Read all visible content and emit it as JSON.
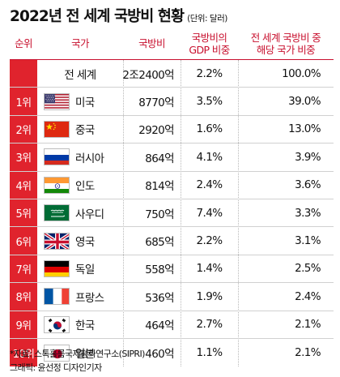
{
  "title": {
    "main": "2022년 전 세계 국방비 현황",
    "unit": "(단위: 달러)"
  },
  "header": {
    "rank": "순위",
    "country": "국가",
    "budget": "국방비",
    "gdp_line1": "국방비의",
    "gdp_line2": "GDP 비중",
    "share_line1": "전 세계 국방비 중",
    "share_line2": "해당 국가 비중"
  },
  "rows": [
    {
      "rank": "",
      "country": "전 세계",
      "budget": "2조2400억",
      "gdp": "2.2%",
      "share": "100.0%",
      "flag": ""
    },
    {
      "rank": "1위",
      "country": "미국",
      "budget": "8770억",
      "gdp": "3.5%",
      "share": "39.0%",
      "flag": "usa-flag-icon"
    },
    {
      "rank": "2위",
      "country": "중국",
      "budget": "2920억",
      "gdp": "1.6%",
      "share": "13.0%",
      "flag": "china-flag-icon"
    },
    {
      "rank": "3위",
      "country": "러시아",
      "budget": "864억",
      "gdp": "4.1%",
      "share": "3.9%",
      "flag": "russia-flag-icon"
    },
    {
      "rank": "4위",
      "country": "인도",
      "budget": "814억",
      "gdp": "2.4%",
      "share": "3.6%",
      "flag": "india-flag-icon"
    },
    {
      "rank": "5위",
      "country": "사우디",
      "budget": "750억",
      "gdp": "7.4%",
      "share": "3.3%",
      "flag": "saudi-flag-icon"
    },
    {
      "rank": "6위",
      "country": "영국",
      "budget": "685억",
      "gdp": "2.2%",
      "share": "3.1%",
      "flag": "uk-flag-icon"
    },
    {
      "rank": "7위",
      "country": "독일",
      "budget": "558억",
      "gdp": "1.4%",
      "share": "2.5%",
      "flag": "germany-flag-icon"
    },
    {
      "rank": "8위",
      "country": "프랑스",
      "budget": "536억",
      "gdp": "1.9%",
      "share": "2.4%",
      "flag": "france-flag-icon"
    },
    {
      "rank": "9위",
      "country": "한국",
      "budget": "464억",
      "gdp": "2.7%",
      "share": "2.1%",
      "flag": "korea-flag-icon"
    },
    {
      "rank": "10위",
      "country": "일본",
      "budget": "460억",
      "gdp": "1.1%",
      "share": "2.1%",
      "flag": "japan-flag-icon"
    }
  ],
  "footer": {
    "source": "*자료: 스톡홀름국제평화연구소(SIPRI)",
    "credit": "그래픽: 윤선정 디자인기자"
  },
  "colors": {
    "accent": "#e0232d",
    "header_text": "#c8102e"
  }
}
